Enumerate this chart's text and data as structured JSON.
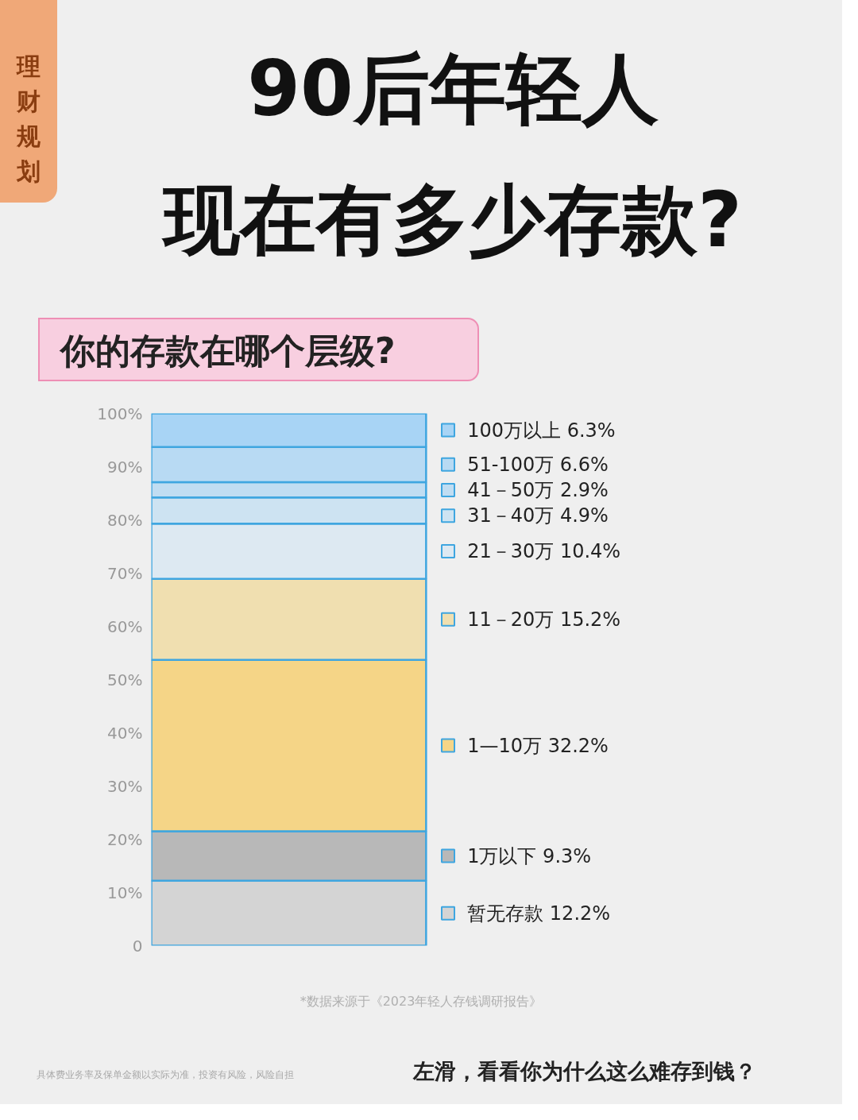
{
  "chart_data": {
    "type": "bar",
    "title": "90后年轻人现在有多少存款?",
    "subtitle": "你的存款在哪个层级?",
    "annotations": [
      "理财规划",
      "*数据来源于《2023年轻人存钱调研报告》",
      "具体费业务率及保单金额以实际为准，投资有风险，风险自担",
      "左滑，看看你为什么这么难存到钱？"
    ],
    "categories": [
      null
    ],
    "stacked": true,
    "ylim": [
      0,
      100
    ],
    "yticks": [
      0,
      {
        "value": 10,
        "label": "10%"
      },
      {
        "value": 20,
        "label": "20%"
      },
      {
        "value": 30,
        "label": "30%"
      },
      {
        "value": 40,
        "label": "40%"
      },
      {
        "value": 50,
        "label": "50%"
      },
      {
        "value": 60,
        "label": "60%"
      },
      {
        "value": 70,
        "label": "70%"
      },
      {
        "value": 80,
        "label": "80%"
      },
      {
        "value": 90,
        "label": "90%"
      },
      {
        "value": 100,
        "label": "100%"
      }
    ],
    "tick_labels": "y",
    "legend": "right",
    "series": [
      {
        "name": "暂无存款  12.2%",
        "color": "#d4d4d4",
        "values": [
          12.2
        ]
      },
      {
        "name": "1万以下  9.3%",
        "color": "#b8b8b8",
        "values": [
          9.3
        ]
      },
      {
        "name": "1—10万  32.2%",
        "color": "#f5d587",
        "values": [
          32.2
        ]
      },
      {
        "name": "11－20万  15.2%",
        "color": "#f0dfb0",
        "values": [
          15.2
        ]
      },
      {
        "name": "21－30万  10.4%",
        "color": "#dde9f2",
        "values": [
          10.4
        ]
      },
      {
        "name": "31－40万  4.9%",
        "color": "#cde3f2",
        "values": [
          4.9
        ]
      },
      {
        "name": "41－50万  2.9%",
        "color": "#c0ddf2",
        "values": [
          2.9
        ]
      },
      {
        "name": "51-100万  6.6%",
        "color": "#b8daf3",
        "values": [
          6.6
        ]
      },
      {
        "name": "100万以上  6.3%",
        "color": "#a8d4f5",
        "values": [
          6.3
        ]
      }
    ]
  }
}
